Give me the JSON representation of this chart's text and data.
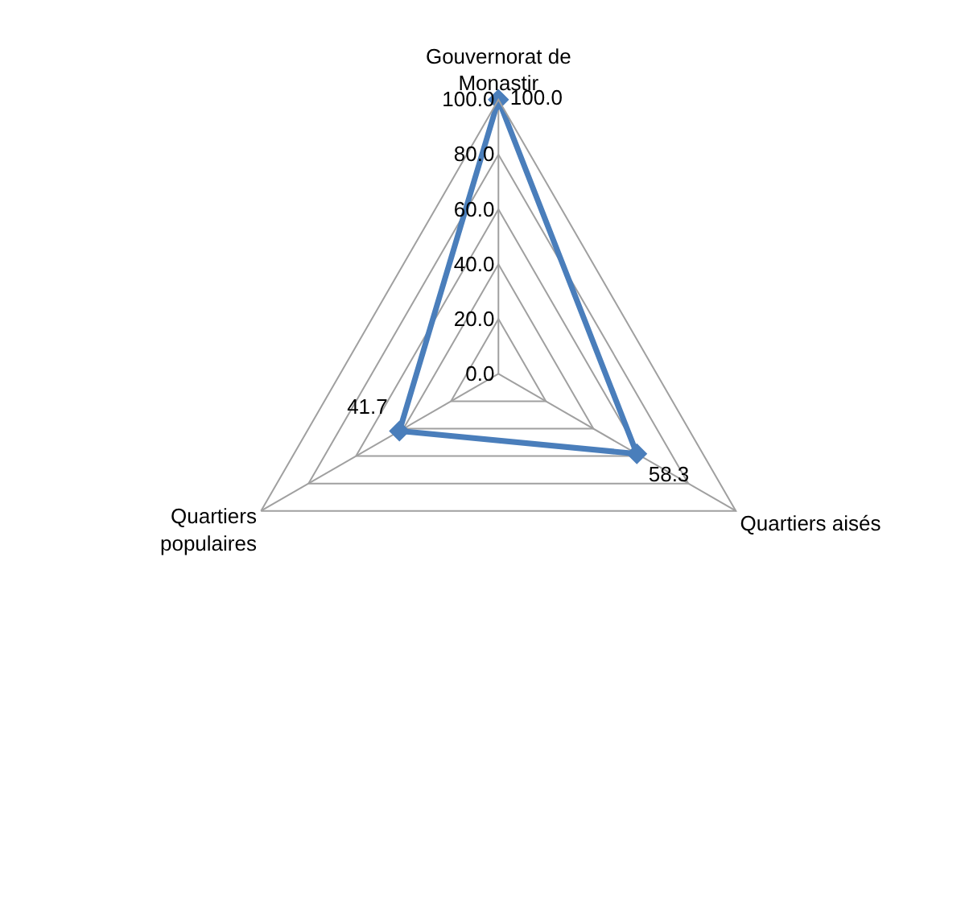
{
  "chart_data": {
    "type": "radar",
    "categories": [
      "Gouvernorat de Monastir",
      "Quartiers aisés",
      "Quartiers populaires"
    ],
    "series": [
      {
        "color": "#4a7ebb",
        "values": [
          100.0,
          58.3,
          41.7
        ],
        "value_labels": [
          "100.0",
          "58.3",
          "41.7"
        ]
      }
    ],
    "ylim": [
      0,
      100
    ],
    "yticks": [
      {
        "value": 0,
        "label": "0.0"
      },
      {
        "value": 20,
        "label": "20.0"
      },
      {
        "value": 40,
        "label": "40.0"
      },
      {
        "value": 60,
        "label": "60.0"
      },
      {
        "value": 80,
        "label": "80.0"
      },
      {
        "value": 100,
        "label": "100.0"
      }
    ],
    "grid": true,
    "legend": false,
    "marker": "diamond",
    "line_style": "solid"
  }
}
